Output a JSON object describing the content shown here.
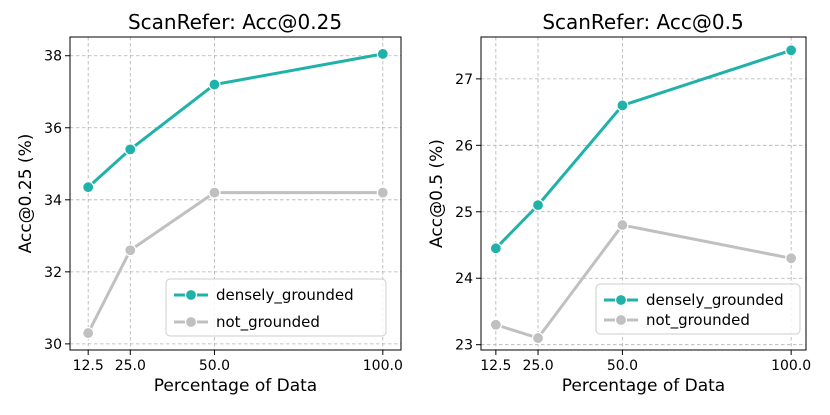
{
  "chart_data": [
    {
      "type": "line",
      "title": "ScanRefer: Acc@0.25",
      "xlabel": "Percentage of Data",
      "ylabel": "Acc@0.25 (%)",
      "x": [
        12.5,
        25.0,
        50.0,
        100.0
      ],
      "xticks": [
        "12.5",
        "25.0",
        "50.0",
        "100.0"
      ],
      "xlim": [
        7.1,
        105.4
      ],
      "ylim": [
        29.83,
        38.52
      ],
      "yticks": [
        30,
        32,
        34,
        36,
        38
      ],
      "grid": true,
      "legend_position": "lower-right",
      "series": [
        {
          "name": "densely_grounded",
          "color": "#20b2aa",
          "values": [
            34.35,
            35.4,
            37.2,
            38.05
          ]
        },
        {
          "name": "not_grounded",
          "color": "#c0c0c0",
          "values": [
            30.3,
            32.6,
            34.2,
            34.2
          ]
        }
      ]
    },
    {
      "type": "line",
      "title": "ScanRefer: Acc@0.5",
      "xlabel": "Percentage of Data",
      "ylabel": "Acc@0.5 (%)",
      "x": [
        12.5,
        25.0,
        50.0,
        100.0
      ],
      "xticks": [
        "12.5",
        "25.0",
        "50.0",
        "100.0"
      ],
      "xlim": [
        8.1,
        104.4
      ],
      "ylim": [
        22.92,
        27.63
      ],
      "yticks": [
        23,
        24,
        25,
        26,
        27
      ],
      "grid": true,
      "legend_position": "lower-right",
      "series": [
        {
          "name": "densely_grounded",
          "color": "#20b2aa",
          "values": [
            24.45,
            25.1,
            26.6,
            27.43
          ]
        },
        {
          "name": "not_grounded",
          "color": "#c0c0c0",
          "values": [
            23.3,
            23.1,
            24.8,
            24.3
          ]
        }
      ]
    }
  ]
}
